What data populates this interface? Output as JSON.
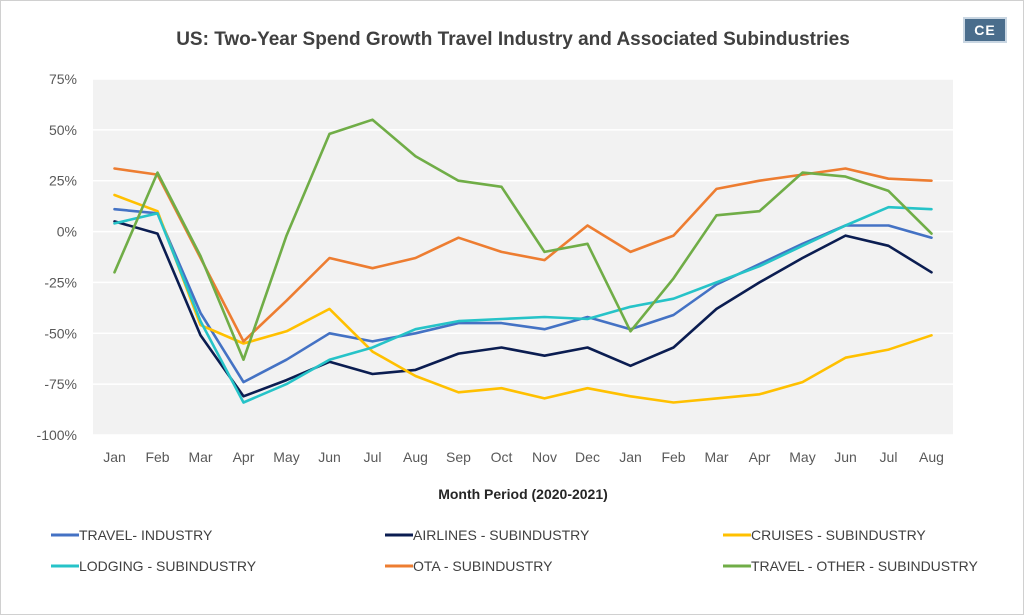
{
  "chart_data": {
    "type": "line",
    "title": "US: Two-Year Spend Growth Travel Industry and Associated Subindustries",
    "xlabel": "Month Period (2020-2021)",
    "ylabel": "",
    "categories": [
      "Jan",
      "Feb",
      "Mar",
      "Apr",
      "May",
      "Jun",
      "Jul",
      "Aug",
      "Sep",
      "Oct",
      "Nov",
      "Dec",
      "Jan",
      "Feb",
      "Mar",
      "Apr",
      "May",
      "Jun",
      "Jul",
      "Aug"
    ],
    "y_ticks": [
      75,
      50,
      25,
      0,
      -25,
      -50,
      -75,
      -100
    ],
    "y_tick_labels": [
      "75%",
      "50%",
      "25%",
      "0%",
      "-25%",
      "-50%",
      "-75%",
      "-100%"
    ],
    "ylim": [
      -100,
      75
    ],
    "grid": true,
    "legend_position": "bottom",
    "series": [
      {
        "name": "TRAVEL- INDUSTRY",
        "color": "#4472c4",
        "values": [
          11,
          9,
          -40,
          -74,
          -63,
          -50,
          -54,
          -50,
          -45,
          -45,
          -48,
          -42,
          -48,
          -41,
          -26,
          -16,
          -6,
          3,
          3,
          -3
        ]
      },
      {
        "name": "AIRLINES - SUBINDUSTRY",
        "color": "#0b1d51",
        "values": [
          5,
          -1,
          -51,
          -81,
          -73,
          -64,
          -70,
          -68,
          -60,
          -57,
          -61,
          -57,
          -66,
          -57,
          -38,
          -25,
          -13,
          -2,
          -7,
          -20
        ]
      },
      {
        "name": "CRUISES - SUBINDUSTRY",
        "color": "#ffc000",
        "values": [
          18,
          10,
          -46,
          -55,
          -49,
          -38,
          -59,
          -71,
          -79,
          -77,
          -82,
          -77,
          -81,
          -84,
          -82,
          -80,
          -74,
          -62,
          -58,
          -51
        ]
      },
      {
        "name": "LODGING - SUBINDUSTRY",
        "color": "#26c3c8",
        "values": [
          4,
          9,
          -44,
          -84,
          -75,
          -63,
          -57,
          -48,
          -44,
          -43,
          -42,
          -43,
          -37,
          -33,
          -25,
          -17,
          -7,
          3,
          12,
          11
        ]
      },
      {
        "name": "OTA - SUBINDUSTRY",
        "color": "#ed7d31",
        "values": [
          31,
          28,
          -13,
          -54,
          -34,
          -13,
          -18,
          -13,
          -3,
          -10,
          -14,
          3,
          -10,
          -2,
          21,
          25,
          28,
          31,
          26,
          25
        ]
      },
      {
        "name": "TRAVEL - OTHER - SUBINDUSTRY",
        "color": "#70ad47",
        "values": [
          -20,
          29,
          -12,
          -63,
          -2,
          48,
          55,
          37,
          25,
          22,
          -10,
          -6,
          -49,
          -23,
          8,
          10,
          29,
          27,
          20,
          -1
        ]
      }
    ]
  },
  "badge": "CE"
}
